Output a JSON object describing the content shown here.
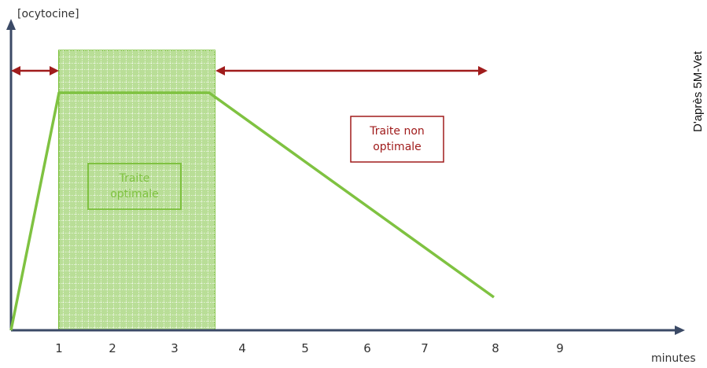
{
  "chart_data": {
    "type": "line",
    "ylabel": "[ocytocine]",
    "xlabel": "minutes",
    "x_ticks": [
      "1",
      "2",
      "3",
      "4",
      "5",
      "6",
      "7",
      "8",
      "9"
    ],
    "xlim": [
      0,
      10
    ],
    "ylim": [
      0,
      1.1
    ],
    "series": [
      {
        "x": [
          0,
          0.75,
          3.2,
          8.0
        ],
        "y": [
          0,
          1.0,
          1.0,
          0.13
        ],
        "color": "#7fc241"
      }
    ],
    "optimal_zone": {
      "x_range": [
        0.75,
        3.2
      ],
      "color": "#7fc241"
    },
    "non_optimal_ranges": [
      [
        0,
        0.75
      ],
      [
        3.3,
        7.9
      ]
    ],
    "arrow_color": "#a01c1c",
    "annotations": {
      "optimal": {
        "text_lines": [
          "Traite",
          "optimale"
        ],
        "color": "#7fc241"
      },
      "non_optimal": {
        "text_lines": [
          "Traite non",
          "optimale"
        ],
        "color": "#a01c1c"
      }
    },
    "source_credit": "D'après 5M-Vet"
  }
}
